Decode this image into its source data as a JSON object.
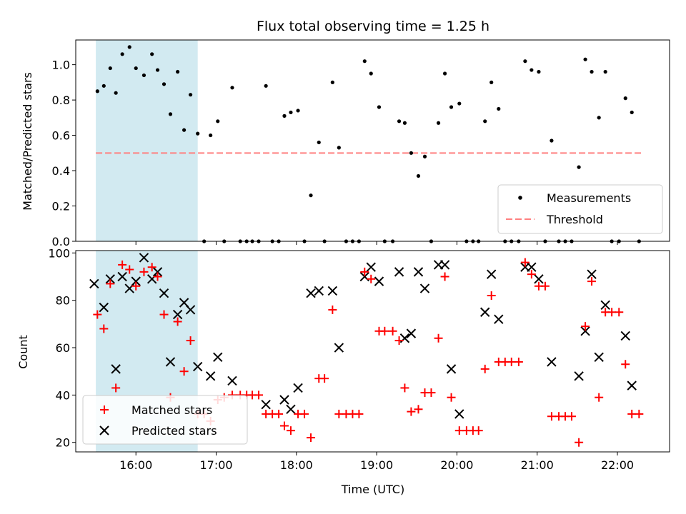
{
  "title": "Flux total observing time = 1.25 h",
  "x_label": "Time (UTC)",
  "x_ticks": [
    "16:00",
    "17:00",
    "18:00",
    "19:00",
    "20:00",
    "21:00",
    "22:00"
  ],
  "x_tick_hours": [
    16,
    17,
    18,
    19,
    20,
    21,
    22
  ],
  "colors": {
    "measure": "#000000",
    "threshold": "#ff8080",
    "matched": "#ff0000",
    "predicted": "#000000",
    "span": "#add8e6"
  },
  "chart_data": [
    {
      "type": "scatter",
      "ylabel": "Matched/Predicted stars",
      "ylim": [
        0,
        1.14
      ],
      "xlim": [
        15.25,
        22.65
      ],
      "yticks": [
        "0.0",
        "0.2",
        "0.4",
        "0.6",
        "0.8",
        "1.0"
      ],
      "ytick_values": [
        0,
        0.2,
        0.4,
        0.6,
        0.8,
        1.0
      ],
      "shaded_span": [
        15.5,
        16.77
      ],
      "legend_loc": "lower right",
      "threshold": {
        "name": "Threshold",
        "value": 0.5,
        "x": [
          15.5,
          22.3
        ]
      },
      "series": [
        {
          "name": "Measurements",
          "x": [
            15.52,
            15.6,
            15.68,
            15.75,
            15.83,
            15.92,
            16.0,
            16.1,
            16.2,
            16.27,
            16.35,
            16.43,
            16.52,
            16.6,
            16.68,
            16.77,
            16.85,
            16.93,
            17.02,
            17.1,
            17.2,
            17.3,
            17.38,
            17.45,
            17.53,
            17.62,
            17.7,
            17.78,
            17.85,
            17.93,
            18.02,
            18.1,
            18.18,
            18.28,
            18.35,
            18.45,
            18.53,
            18.62,
            18.7,
            18.78,
            18.85,
            18.93,
            19.03,
            19.1,
            19.2,
            19.28,
            19.35,
            19.43,
            19.52,
            19.6,
            19.68,
            19.77,
            19.85,
            19.93,
            20.03,
            20.12,
            20.2,
            20.27,
            20.35,
            20.43,
            20.52,
            20.6,
            20.68,
            20.77,
            20.85,
            20.93,
            21.02,
            21.1,
            21.18,
            21.27,
            21.35,
            21.43,
            21.52,
            21.6,
            21.68,
            21.77,
            21.85,
            21.93,
            22.02,
            22.1,
            22.18,
            22.27
          ],
          "y": [
            0.85,
            0.88,
            0.98,
            0.84,
            1.06,
            1.1,
            0.98,
            0.94,
            1.06,
            0.97,
            0.89,
            0.72,
            0.96,
            0.63,
            0.83,
            0.61,
            0.0,
            0.6,
            0.68,
            0.0,
            0.87,
            0.0,
            0.0,
            0.0,
            0.0,
            0.88,
            0.0,
            0.0,
            0.71,
            0.73,
            0.74,
            0.0,
            0.26,
            0.56,
            0.0,
            0.9,
            0.53,
            0.0,
            0.0,
            0.0,
            1.02,
            0.95,
            0.76,
            0.0,
            0.0,
            0.68,
            0.67,
            0.5,
            0.37,
            0.48,
            0.0,
            0.67,
            0.95,
            0.76,
            0.78,
            0.0,
            0.0,
            0.0,
            0.68,
            0.9,
            0.75,
            0.0,
            0.0,
            0.0,
            1.02,
            0.97,
            0.96,
            0.0,
            0.57,
            0.0,
            0.0,
            0.0,
            0.42,
            1.03,
            0.96,
            0.7,
            0.96,
            0.0,
            0.0,
            0.81,
            0.73,
            0.0
          ]
        }
      ]
    },
    {
      "type": "scatter",
      "ylabel": "Count",
      "ylim": [
        16,
        101
      ],
      "xlim": [
        15.25,
        22.65
      ],
      "yticks": [
        "20",
        "40",
        "60",
        "80",
        "100"
      ],
      "ytick_values": [
        20,
        40,
        60,
        80,
        100
      ],
      "shaded_span": [
        15.5,
        16.77
      ],
      "legend_loc": "lower left",
      "series": [
        {
          "name": "Matched stars",
          "x": [
            15.52,
            15.6,
            15.68,
            15.75,
            15.83,
            15.92,
            16.0,
            16.1,
            16.2,
            16.27,
            16.35,
            16.43,
            16.52,
            16.6,
            16.68,
            16.77,
            16.85,
            16.93,
            17.02,
            17.1,
            17.2,
            17.3,
            17.38,
            17.45,
            17.53,
            17.62,
            17.7,
            17.78,
            17.85,
            17.93,
            18.02,
            18.1,
            18.18,
            18.28,
            18.35,
            18.45,
            18.53,
            18.62,
            18.7,
            18.78,
            18.85,
            18.93,
            19.03,
            19.1,
            19.2,
            19.28,
            19.35,
            19.43,
            19.52,
            19.6,
            19.68,
            19.77,
            19.85,
            19.93,
            20.03,
            20.12,
            20.2,
            20.27,
            20.35,
            20.43,
            20.52,
            20.6,
            20.68,
            20.77,
            20.85,
            20.93,
            21.02,
            21.1,
            21.18,
            21.27,
            21.35,
            21.43,
            21.52,
            21.6,
            21.68,
            21.77,
            21.85,
            21.93,
            22.02,
            22.1,
            22.18,
            22.27
          ],
          "y": [
            74,
            68,
            87,
            43,
            95,
            93,
            86,
            92,
            94,
            90,
            74,
            39,
            71,
            50,
            63,
            32,
            32,
            29,
            38,
            39,
            40,
            40,
            40,
            40,
            40,
            32,
            32,
            32,
            27,
            25,
            32,
            32,
            22,
            47,
            47,
            76,
            32,
            32,
            32,
            32,
            92,
            89,
            67,
            67,
            67,
            63,
            43,
            33,
            34,
            41,
            41,
            64,
            90,
            39,
            25,
            25,
            25,
            25,
            51,
            82,
            54,
            54,
            54,
            54,
            96,
            91,
            86,
            86,
            31,
            31,
            31,
            31,
            20,
            69,
            88,
            39,
            75,
            75,
            75,
            53,
            32,
            32
          ]
        },
        {
          "name": "Predicted stars",
          "x": [
            15.48,
            15.6,
            15.68,
            15.75,
            15.83,
            15.92,
            16.0,
            16.1,
            16.2,
            16.27,
            16.35,
            16.43,
            16.52,
            16.6,
            16.68,
            16.77,
            16.93,
            17.02,
            17.2,
            17.62,
            17.85,
            17.93,
            18.02,
            18.18,
            18.28,
            18.45,
            18.53,
            18.85,
            18.93,
            19.03,
            19.28,
            19.35,
            19.43,
            19.52,
            19.6,
            19.77,
            19.85,
            19.93,
            20.03,
            20.35,
            20.43,
            20.52,
            20.85,
            20.93,
            21.02,
            21.18,
            21.52,
            21.6,
            21.68,
            21.77,
            21.85,
            22.1,
            22.18
          ],
          "y": [
            87,
            77,
            89,
            51,
            90,
            85,
            88,
            98,
            89,
            92,
            83,
            54,
            74,
            79,
            76,
            52,
            48,
            56,
            46,
            36,
            38,
            34,
            43,
            83,
            84,
            84,
            60,
            90,
            94,
            88,
            92,
            64,
            66,
            92,
            85,
            95,
            95,
            51,
            32,
            75,
            91,
            72,
            94,
            94,
            89,
            54,
            48,
            67,
            91,
            56,
            78,
            65,
            44
          ]
        }
      ]
    }
  ]
}
